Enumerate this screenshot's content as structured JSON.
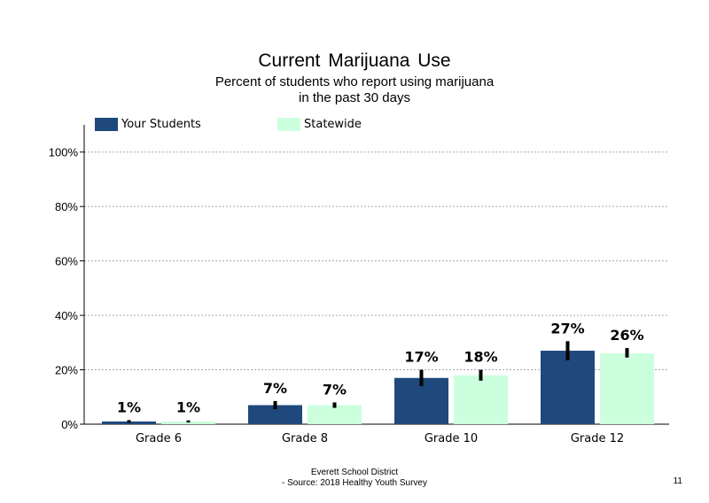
{
  "title": "Current  Marijuana  Use",
  "subtitle_line1": "Percent of students who report using marijuana",
  "subtitle_line2": "in the past 30 days",
  "footer_line1": "Everett School District",
  "footer_line2": "- Source: 2018 Healthy  Youth Survey",
  "page_number": "11",
  "colors": {
    "your_students": "#1f497d",
    "statewide": "#ccffdd",
    "error_bar": "#000000"
  },
  "chart_data": {
    "type": "bar",
    "categories": [
      "Grade 6",
      "Grade 8",
      "Grade 10",
      "Grade 12"
    ],
    "series": [
      {
        "name": "Your Students",
        "values": [
          1,
          7,
          17,
          27
        ],
        "labels": [
          "1%",
          "7%",
          "17%",
          "27%"
        ],
        "error_low": [
          0.5,
          5.5,
          14,
          23.5
        ],
        "error_high": [
          1.5,
          8.5,
          20,
          30.5
        ]
      },
      {
        "name": "Statewide",
        "values": [
          1,
          7,
          18,
          26
        ],
        "labels": [
          "1%",
          "7%",
          "18%",
          "26%"
        ],
        "error_low": [
          0.6,
          6,
          16,
          24.5
        ],
        "error_high": [
          1.4,
          8,
          20,
          28
        ]
      }
    ],
    "yticks": [
      "0%",
      "20%",
      "40%",
      "60%",
      "80%",
      "100%"
    ],
    "ytick_values": [
      0,
      20,
      40,
      60,
      80,
      100
    ],
    "ylim": [
      0,
      110
    ],
    "grid": true,
    "legend_position": "top-left"
  }
}
